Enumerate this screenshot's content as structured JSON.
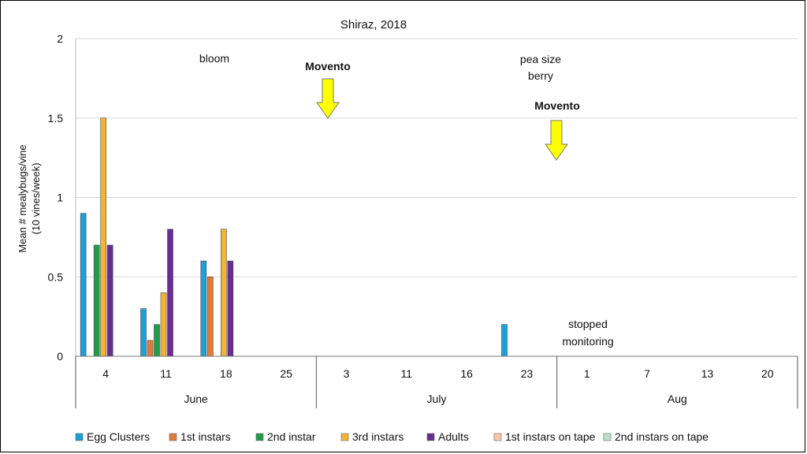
{
  "chart_data": {
    "type": "bar",
    "title": "Shiraz, 2018",
    "ylabel_line1": "Mean # mealybugs/vine",
    "ylabel_line2": "(10 vines/week)",
    "ylim": [
      0,
      2
    ],
    "yticks": [
      0,
      0.5,
      1,
      1.5,
      2
    ],
    "ytick_labels": [
      "0",
      "0.5",
      "1",
      "1.5",
      "2"
    ],
    "grid": true,
    "legend_position": "bottom",
    "categories": [
      "4",
      "11",
      "18",
      "25",
      "3",
      "11",
      "16",
      "23",
      "1",
      "7",
      "13",
      "20"
    ],
    "month_groups": [
      {
        "label": "June",
        "count": 4
      },
      {
        "label": "July",
        "count": 4
      },
      {
        "label": "Aug",
        "count": 4
      }
    ],
    "series": [
      {
        "name": "Egg Clusters",
        "color": "#1AA1DC",
        "values": [
          0.9,
          0.3,
          0.6,
          0,
          0,
          0,
          0,
          0.2,
          0,
          0,
          0,
          0
        ]
      },
      {
        "name": "1st instars",
        "color": "#E07B39",
        "values": [
          0,
          0.1,
          0.5,
          0,
          0,
          0,
          0,
          0,
          0,
          0,
          0,
          0
        ]
      },
      {
        "name": "2nd instar",
        "color": "#1F9E4A",
        "values": [
          0.7,
          0.2,
          0,
          0,
          0,
          0,
          0,
          0,
          0,
          0,
          0,
          0
        ]
      },
      {
        "name": "3rd instars",
        "color": "#F4B52E",
        "values": [
          1.5,
          0.4,
          0.8,
          0,
          0,
          0,
          0,
          0,
          0,
          0,
          0,
          0
        ]
      },
      {
        "name": "Adults",
        "color": "#6A2C91",
        "values": [
          0.7,
          0.8,
          0.6,
          0,
          0,
          0,
          0,
          0,
          0,
          0,
          0,
          0
        ]
      },
      {
        "name": "1st instars on tape",
        "color": "#F7C8A8",
        "values": [
          0,
          0,
          0,
          0,
          0,
          0,
          0,
          0,
          0,
          0,
          0,
          0
        ]
      },
      {
        "name": "2nd instars on tape",
        "color": "#B8E2C6",
        "values": [
          0,
          0,
          0,
          0,
          0,
          0,
          0,
          0,
          0,
          0,
          0,
          0
        ]
      }
    ],
    "annotations": {
      "bloom": "bloom",
      "pea_line1": "pea size",
      "pea_line2": "berry",
      "movento1": "Movento",
      "movento2": "Movento",
      "stopped_line1": "stopped",
      "stopped_line2": "monitoring"
    },
    "arrow_color": "#FFFF00"
  }
}
